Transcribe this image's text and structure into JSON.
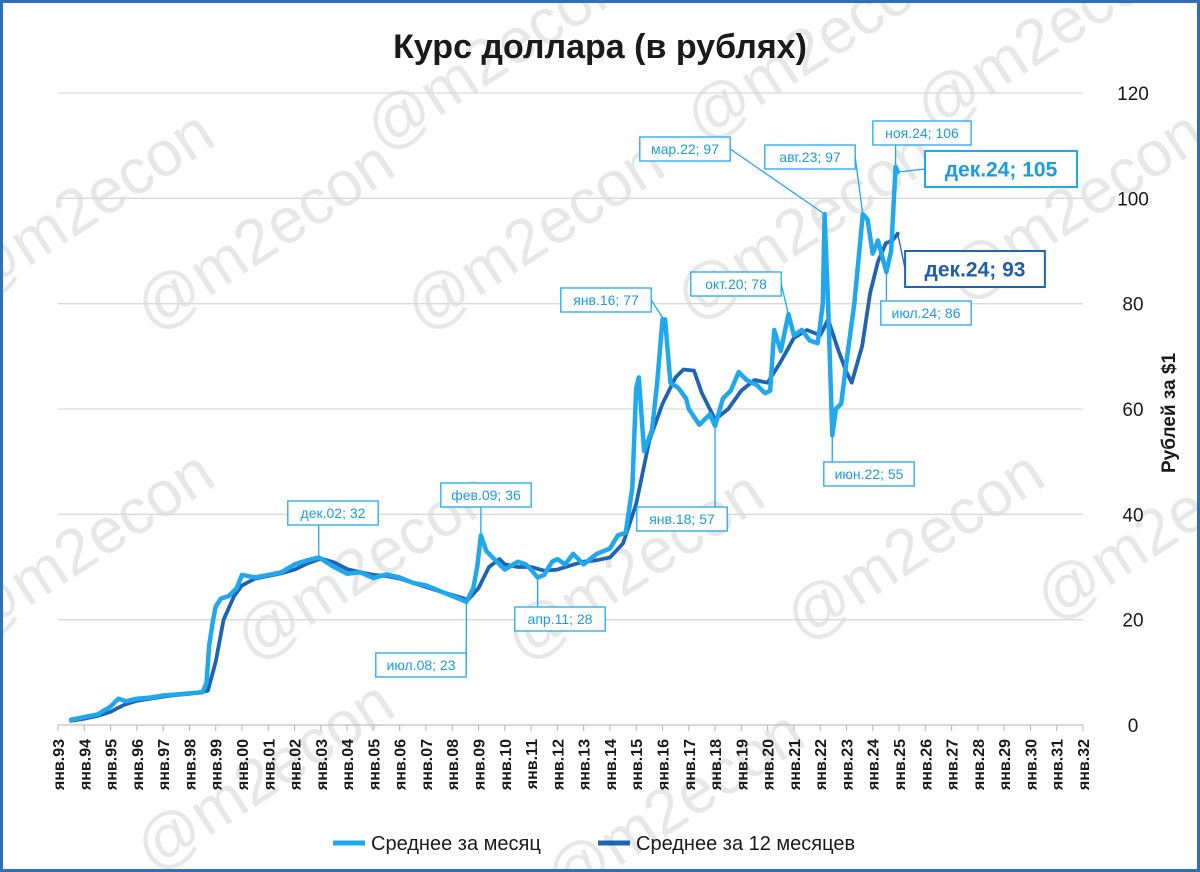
{
  "chart_data": {
    "type": "line",
    "title": "Курс доллара (в рублях)",
    "ylabel": "Рублей за $1",
    "xlabel": "",
    "ylim": [
      0,
      120
    ],
    "yticks": [
      0,
      20,
      40,
      60,
      80,
      100,
      120
    ],
    "xlim": [
      1993.0,
      2032.0
    ],
    "xtick_labels": [
      "янв.93",
      "янв.94",
      "янв.95",
      "янв.96",
      "янв.97",
      "янв.98",
      "янв.99",
      "янв.00",
      "янв.01",
      "янв.02",
      "янв.03",
      "янв.04",
      "янв.05",
      "янв.06",
      "янв.07",
      "янв.08",
      "янв.09",
      "янв.10",
      "янв.11",
      "янв.12",
      "янв.13",
      "янв.14",
      "янв.15",
      "янв.16",
      "янв.17",
      "янв.18",
      "янв.19",
      "янв.20",
      "янв.21",
      "янв.22",
      "янв.23",
      "янв.24",
      "янв.25",
      "янв.26",
      "янв.27",
      "янв.28",
      "янв.29",
      "янв.30",
      "янв.31",
      "янв.32"
    ],
    "grid": true,
    "legend_position": "bottom",
    "watermark": "@m2econ",
    "colors": {
      "monthly": "#20A8EE",
      "average12": "#1F64B0",
      "frame": "#2F6FB6",
      "grid": "#d9d9d9"
    },
    "series": [
      {
        "name": "Среднее за месяц",
        "points": [
          [
            1993.5,
            1.0
          ],
          [
            1994.0,
            1.5
          ],
          [
            1994.5,
            2.0
          ],
          [
            1995.0,
            3.5
          ],
          [
            1995.3,
            5.0
          ],
          [
            1995.6,
            4.5
          ],
          [
            1996.0,
            5.0
          ],
          [
            1996.5,
            5.2
          ],
          [
            1997.0,
            5.6
          ],
          [
            1997.5,
            5.8
          ],
          [
            1998.0,
            6.0
          ],
          [
            1998.5,
            6.2
          ],
          [
            1998.65,
            8.0
          ],
          [
            1998.75,
            15.0
          ],
          [
            1998.9,
            20.0
          ],
          [
            1999.0,
            22.5
          ],
          [
            1999.2,
            24.0
          ],
          [
            1999.5,
            24.5
          ],
          [
            1999.8,
            26.0
          ],
          [
            2000.0,
            28.5
          ],
          [
            2000.5,
            28.0
          ],
          [
            2001.0,
            28.5
          ],
          [
            2001.5,
            29.0
          ],
          [
            2002.0,
            30.5
          ],
          [
            2002.5,
            31.3
          ],
          [
            2002.92,
            31.8
          ],
          [
            2003.0,
            31.6
          ],
          [
            2003.5,
            30.0
          ],
          [
            2004.0,
            28.7
          ],
          [
            2004.5,
            29.0
          ],
          [
            2005.0,
            27.9
          ],
          [
            2005.5,
            28.6
          ],
          [
            2006.0,
            28.0
          ],
          [
            2006.5,
            27.0
          ],
          [
            2007.0,
            26.5
          ],
          [
            2007.5,
            25.5
          ],
          [
            2008.0,
            24.5
          ],
          [
            2008.54,
            23.4
          ],
          [
            2008.8,
            26.0
          ],
          [
            2008.95,
            30.0
          ],
          [
            2009.09,
            36.0
          ],
          [
            2009.3,
            33.0
          ],
          [
            2009.6,
            31.5
          ],
          [
            2010.0,
            29.5
          ],
          [
            2010.5,
            31.0
          ],
          [
            2010.8,
            30.5
          ],
          [
            2011.0,
            29.5
          ],
          [
            2011.25,
            28.0
          ],
          [
            2011.5,
            28.5
          ],
          [
            2011.8,
            31.0
          ],
          [
            2012.0,
            31.5
          ],
          [
            2012.3,
            30.5
          ],
          [
            2012.6,
            32.5
          ],
          [
            2013.0,
            30.5
          ],
          [
            2013.5,
            32.5
          ],
          [
            2014.0,
            33.5
          ],
          [
            2014.3,
            36.0
          ],
          [
            2014.6,
            36.5
          ],
          [
            2014.85,
            45.0
          ],
          [
            2015.0,
            64.0
          ],
          [
            2015.1,
            66.0
          ],
          [
            2015.3,
            52.0
          ],
          [
            2015.6,
            56.0
          ],
          [
            2015.8,
            65.0
          ],
          [
            2016.0,
            77.0
          ],
          [
            2016.1,
            77.0
          ],
          [
            2016.3,
            65.0
          ],
          [
            2016.6,
            64.0
          ],
          [
            2016.9,
            62.0
          ],
          [
            2017.0,
            60.0
          ],
          [
            2017.4,
            57.0
          ],
          [
            2017.8,
            59.0
          ],
          [
            2018.0,
            56.8
          ],
          [
            2018.3,
            62.0
          ],
          [
            2018.6,
            63.5
          ],
          [
            2018.9,
            67.0
          ],
          [
            2019.2,
            65.5
          ],
          [
            2019.6,
            64.5
          ],
          [
            2019.9,
            63.0
          ],
          [
            2020.1,
            63.5
          ],
          [
            2020.25,
            75.0
          ],
          [
            2020.5,
            71.0
          ],
          [
            2020.79,
            78.0
          ],
          [
            2021.0,
            74.0
          ],
          [
            2021.3,
            75.0
          ],
          [
            2021.6,
            73.0
          ],
          [
            2021.9,
            72.5
          ],
          [
            2022.0,
            76.0
          ],
          [
            2022.1,
            80.0
          ],
          [
            2022.17,
            97.0
          ],
          [
            2022.3,
            80.0
          ],
          [
            2022.46,
            55.0
          ],
          [
            2022.6,
            60.0
          ],
          [
            2022.8,
            61.0
          ],
          [
            2023.0,
            69.0
          ],
          [
            2023.3,
            80.0
          ],
          [
            2023.62,
            97.0
          ],
          [
            2023.8,
            96.0
          ],
          [
            2024.0,
            89.5
          ],
          [
            2024.2,
            92.0
          ],
          [
            2024.52,
            86.0
          ],
          [
            2024.7,
            90.0
          ],
          [
            2024.87,
            106.0
          ],
          [
            2024.95,
            105.0
          ]
        ]
      },
      {
        "name": "Среднее за 12 месяцев",
        "points": [
          [
            1993.5,
            0.8
          ],
          [
            1994.0,
            1.2
          ],
          [
            1994.5,
            1.7
          ],
          [
            1995.0,
            2.5
          ],
          [
            1995.5,
            3.8
          ],
          [
            1996.0,
            4.6
          ],
          [
            1996.5,
            5.0
          ],
          [
            1997.0,
            5.4
          ],
          [
            1997.5,
            5.7
          ],
          [
            1998.0,
            5.9
          ],
          [
            1998.7,
            6.5
          ],
          [
            1999.0,
            12.0
          ],
          [
            1999.3,
            20.0
          ],
          [
            1999.7,
            24.5
          ],
          [
            2000.0,
            26.5
          ],
          [
            2000.5,
            27.8
          ],
          [
            2001.0,
            28.3
          ],
          [
            2001.5,
            28.8
          ],
          [
            2002.0,
            29.5
          ],
          [
            2002.5,
            30.7
          ],
          [
            2003.0,
            31.6
          ],
          [
            2003.5,
            30.9
          ],
          [
            2004.0,
            29.6
          ],
          [
            2004.5,
            29.0
          ],
          [
            2005.0,
            28.5
          ],
          [
            2005.5,
            28.3
          ],
          [
            2006.0,
            27.8
          ],
          [
            2006.5,
            27.0
          ],
          [
            2007.0,
            26.2
          ],
          [
            2007.5,
            25.4
          ],
          [
            2008.0,
            24.7
          ],
          [
            2008.6,
            23.8
          ],
          [
            2009.0,
            26.0
          ],
          [
            2009.4,
            30.0
          ],
          [
            2009.8,
            31.5
          ],
          [
            2010.0,
            30.5
          ],
          [
            2010.5,
            30.0
          ],
          [
            2011.0,
            30.0
          ],
          [
            2011.5,
            29.3
          ],
          [
            2012.0,
            29.5
          ],
          [
            2012.5,
            30.3
          ],
          [
            2013.0,
            31.0
          ],
          [
            2013.5,
            31.3
          ],
          [
            2014.0,
            31.8
          ],
          [
            2014.5,
            34.5
          ],
          [
            2015.0,
            42.0
          ],
          [
            2015.5,
            54.0
          ],
          [
            2016.0,
            61.0
          ],
          [
            2016.5,
            66.0
          ],
          [
            2016.8,
            67.5
          ],
          [
            2017.2,
            67.3
          ],
          [
            2017.5,
            63.0
          ],
          [
            2018.0,
            58.0
          ],
          [
            2018.5,
            60.0
          ],
          [
            2019.0,
            63.5
          ],
          [
            2019.5,
            65.5
          ],
          [
            2020.0,
            65.0
          ],
          [
            2020.5,
            69.0
          ],
          [
            2021.0,
            73.5
          ],
          [
            2021.5,
            75.0
          ],
          [
            2022.0,
            74.0
          ],
          [
            2022.3,
            77.0
          ],
          [
            2022.7,
            71.0
          ],
          [
            2023.0,
            67.0
          ],
          [
            2023.2,
            65.0
          ],
          [
            2023.6,
            72.0
          ],
          [
            2023.9,
            82.0
          ],
          [
            2024.2,
            88.0
          ],
          [
            2024.5,
            91.5
          ],
          [
            2024.75,
            92.0
          ],
          [
            2024.95,
            93.3
          ]
        ]
      }
    ],
    "annotations": [
      {
        "label": "дек.02; 32",
        "x": 2002.92,
        "y": 31.8,
        "series": 0,
        "style": "small"
      },
      {
        "label": "июл.08; 23",
        "x": 2008.54,
        "y": 23.4,
        "series": 0,
        "style": "small"
      },
      {
        "label": "фев.09; 36",
        "x": 2009.09,
        "y": 36.0,
        "series": 0,
        "style": "small"
      },
      {
        "label": "апр.11; 28",
        "x": 2011.25,
        "y": 28.0,
        "series": 0,
        "style": "small"
      },
      {
        "label": "янв.16; 77",
        "x": 2016.05,
        "y": 77.0,
        "series": 0,
        "style": "small"
      },
      {
        "label": "янв.18; 57",
        "x": 2018.0,
        "y": 56.8,
        "series": 0,
        "style": "small"
      },
      {
        "label": "окт.20; 78",
        "x": 2020.79,
        "y": 78.0,
        "series": 0,
        "style": "small"
      },
      {
        "label": "мар.22; 97",
        "x": 2022.17,
        "y": 97.0,
        "series": 0,
        "style": "small"
      },
      {
        "label": "июн.22; 55",
        "x": 2022.46,
        "y": 55.0,
        "series": 0,
        "style": "small"
      },
      {
        "label": "авг.23; 97",
        "x": 2023.62,
        "y": 97.0,
        "series": 0,
        "style": "small"
      },
      {
        "label": "ноя.24; 106",
        "x": 2024.87,
        "y": 106.0,
        "series": 0,
        "style": "small"
      },
      {
        "label": "июл.24; 86",
        "x": 2024.52,
        "y": 86.0,
        "series": 0,
        "style": "small"
      },
      {
        "label": "дек.24; 105",
        "x": 2024.95,
        "y": 105.0,
        "series": 0,
        "style": "big"
      },
      {
        "label": "дек.24; 93",
        "x": 2024.95,
        "y": 93.3,
        "series": 1,
        "style": "big-dark"
      }
    ]
  }
}
